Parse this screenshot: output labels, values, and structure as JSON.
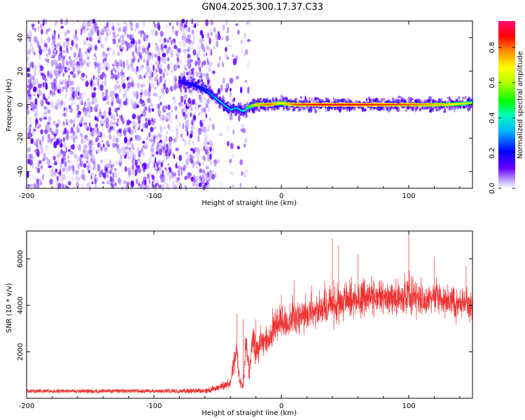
{
  "title": "GN04.2025.300.17.37.C33",
  "chart_data": [
    {
      "type": "heatmap",
      "title": "",
      "xlabel": "Height of straight line (km)",
      "ylabel": "Frequency (Hz)",
      "xlim": [
        -200,
        150
      ],
      "ylim": [
        -50,
        50
      ],
      "xticks": [
        -200,
        -100,
        0,
        100
      ],
      "yticks": [
        -40,
        -20,
        0,
        20,
        40
      ],
      "colorbar": {
        "label": "Normalized spectral amplitude",
        "range": [
          0,
          0.95
        ],
        "ticks": [
          "0.0",
          "0.2",
          "0.4",
          "0.6",
          "0.8"
        ],
        "tick_values": [
          0,
          0.2,
          0.4,
          0.6,
          0.8
        ],
        "colormap": [
          "#ffffff",
          "#4b00ff",
          "#0000ff",
          "#00c8ff",
          "#00ff80",
          "#80ff00",
          "#ffff00",
          "#ff8000",
          "#ff0000",
          "#ff0080"
        ]
      },
      "signal_track": {
        "description_free": true,
        "x": [
          -80,
          -70,
          -60,
          -55,
          -50,
          -45,
          -40,
          -35,
          -30,
          -25,
          -20,
          -10,
          0,
          10,
          30,
          60,
          100,
          130,
          150
        ],
        "frequency_hz": [
          14,
          12,
          9,
          6,
          3,
          0,
          -3,
          -2,
          -4,
          -1,
          0,
          0,
          1,
          0,
          0,
          0,
          0,
          0,
          1
        ],
        "amplitude": [
          0.15,
          0.2,
          0.25,
          0.3,
          0.35,
          0.35,
          0.35,
          0.35,
          0.4,
          0.55,
          0.75,
          0.85,
          0.7,
          0.85,
          0.9,
          0.9,
          0.85,
          0.75,
          0.6
        ]
      },
      "noise_extent_x": [
        -200,
        -30
      ],
      "grid": false
    },
    {
      "type": "line",
      "title": "",
      "xlabel": "Height of straight line (km)",
      "ylabel": "SNR (10 * v/v)",
      "xlim": [
        -200,
        150
      ],
      "ylim": [
        0,
        7200
      ],
      "xticks": [
        -200,
        -100,
        0,
        100
      ],
      "yticks": [
        2000,
        4000,
        6000
      ],
      "series": [
        {
          "color": "#ee3333",
          "x": [
            -200,
            -150,
            -100,
            -60,
            -50,
            -40,
            -38,
            -35,
            -33,
            -30,
            -28,
            -25,
            -22,
            -20,
            -15,
            -10,
            -5,
            0,
            5,
            10,
            20,
            30,
            40,
            50,
            60,
            70,
            80,
            90,
            100,
            110,
            120,
            130,
            140,
            150
          ],
          "values": [
            300,
            300,
            300,
            310,
            450,
            650,
            1400,
            2100,
            900,
            500,
            2300,
            1200,
            2700,
            2000,
            2600,
            2500,
            3100,
            3300,
            3200,
            3500,
            3650,
            3800,
            4000,
            4200,
            4300,
            4350,
            4400,
            4350,
            4400,
            4300,
            4250,
            4200,
            4150,
            4000
          ],
          "spread": [
            120,
            120,
            120,
            150,
            300,
            500,
            900,
            1300,
            700,
            400,
            1100,
            900,
            1200,
            1000,
            1100,
            1100,
            1200,
            1300,
            1300,
            1300,
            1400,
            1400,
            1500,
            1400,
            1400,
            1300,
            1300,
            1300,
            1500,
            1300,
            1200,
            1200,
            1200,
            1100
          ],
          "peaks": [
            [
              -35,
              3650
            ],
            [
              -30,
              3400
            ],
            [
              -20,
              3400
            ],
            [
              0,
              4450
            ],
            [
              10,
              5100
            ],
            [
              40,
              6900
            ],
            [
              45,
              6600
            ],
            [
              60,
              6200
            ],
            [
              100,
              7200
            ],
            [
              120,
              6100
            ],
            [
              145,
              5700
            ]
          ]
        }
      ],
      "grid": false
    }
  ]
}
